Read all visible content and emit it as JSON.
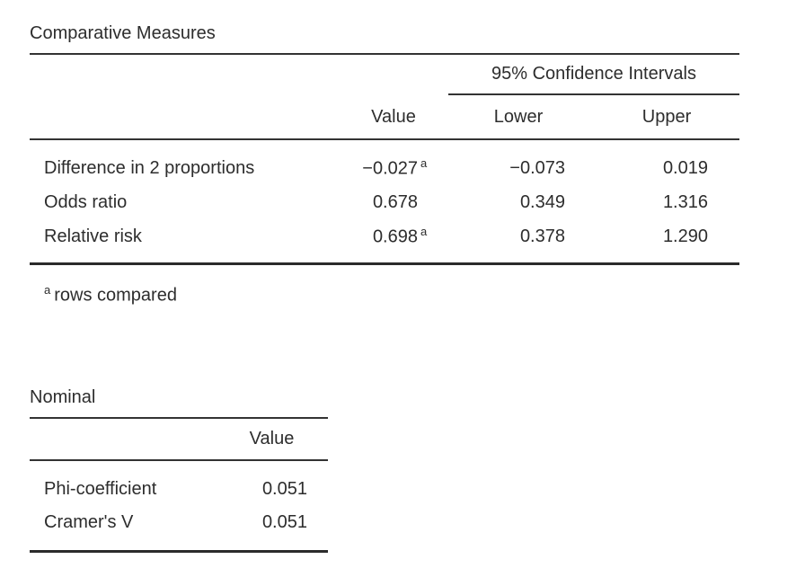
{
  "colors": {
    "text": "#2d2d2d",
    "rule_thin": "#333333",
    "rule_thick": "#2b2b2b",
    "background": "#ffffff"
  },
  "comparative_table": {
    "title": "Comparative Measures",
    "ci_spanner": "95% Confidence Intervals",
    "columns": {
      "value": "Value",
      "lower": "Lower",
      "upper": "Upper"
    },
    "rows": [
      {
        "label": "Difference in 2 proportions",
        "value": "−0.027",
        "value_sup": "a",
        "lower": "−0.073",
        "upper": "0.019"
      },
      {
        "label": "Odds ratio",
        "value": "0.678",
        "value_sup": "",
        "lower": "0.349",
        "upper": "1.316"
      },
      {
        "label": "Relative risk",
        "value": "0.698",
        "value_sup": "a",
        "lower": "0.378",
        "upper": "1.290"
      }
    ],
    "footnote": {
      "marker": "a",
      "text": "rows compared"
    }
  },
  "nominal_table": {
    "title": "Nominal",
    "columns": {
      "value": "Value"
    },
    "rows": [
      {
        "label": "Phi-coefficient",
        "value": "0.051"
      },
      {
        "label": "Cramer's V",
        "value": "0.051"
      }
    ]
  }
}
